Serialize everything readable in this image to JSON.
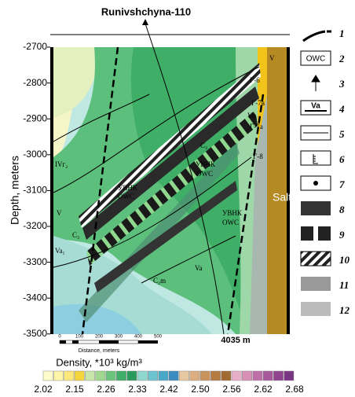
{
  "title": "Runivshchyna-110",
  "y_axis": {
    "label": "Depth, meters",
    "ticks": [
      "-2700",
      "-2800",
      "-2900",
      "-3000",
      "-3100",
      "-3200",
      "-3300",
      "-3400",
      "-3500"
    ]
  },
  "annotations": [
    "V",
    "Г-6",
    "Г-7в",
    "Va₁",
    "Г-7а",
    "C₃",
    "Г-8",
    "IVг₂",
    "УВНК",
    "OWC",
    "УВНК",
    "OWC",
    "УВНК",
    "OWC",
    "Salt",
    "V",
    "C₃",
    "Va₁",
    "Va",
    "C₂m"
  ],
  "well_depth": "4035 m",
  "scale_bar": {
    "ticks": [
      "0",
      "100",
      "200",
      "300",
      "400",
      "500"
    ],
    "label": "Distance, meters"
  },
  "colorbar": {
    "title": "Density, *10³ kg/m³",
    "labels": [
      "2.02",
      "2.15",
      "2.26",
      "2.33",
      "2.42",
      "2.50",
      "2.56",
      "2.62",
      "2.68"
    ],
    "colors": [
      "#fffccc",
      "#fff5a8",
      "#fde97a",
      "#f5d43c",
      "#c8e6a8",
      "#9fd88e",
      "#6cc47c",
      "#3fae68",
      "#2a9a5c",
      "#8fd8d0",
      "#6cc4d0",
      "#4aa8c8",
      "#3a8cc0",
      "#e8c8a0",
      "#dcae80",
      "#c8945c",
      "#b47c40",
      "#a06a30",
      "#e8b0c8",
      "#d890b4",
      "#c070a8",
      "#a8589c",
      "#904490",
      "#7a3484"
    ]
  },
  "legend": {
    "numbers": [
      "1",
      "2",
      "3",
      "4",
      "5",
      "6",
      "7",
      "8",
      "9",
      "10",
      "11",
      "12"
    ],
    "icon_texts": [
      "OWC",
      "Va"
    ]
  }
}
